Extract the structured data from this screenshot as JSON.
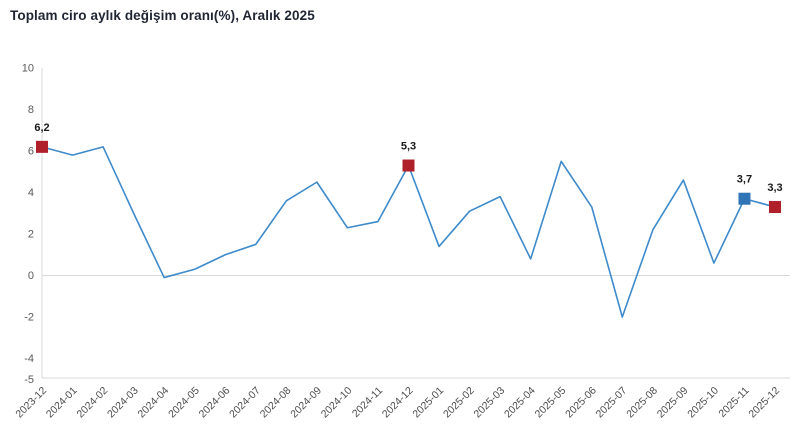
{
  "title": "Toplam ciro aylık değişim oranı(%), Aralık 2025",
  "chart_data": {
    "type": "line",
    "title": "Toplam ciro aylık değişim oranı(%), Aralık 2025",
    "xlabel": "",
    "ylabel": "",
    "categories": [
      "2023-12",
      "2024-01",
      "2024-02",
      "2024-03",
      "2024-04",
      "2024-05",
      "2024-06",
      "2024-07",
      "2024-08",
      "2024-09",
      "2024-10",
      "2024-11",
      "2024-12",
      "2025-01",
      "2025-02",
      "2025-03",
      "2025-04",
      "2025-05",
      "2025-06",
      "2025-07",
      "2025-08",
      "2025-09",
      "2025-10",
      "2025-11",
      "2025-12"
    ],
    "values": [
      6.2,
      5.8,
      6.2,
      3.0,
      -0.1,
      0.3,
      1.0,
      1.5,
      3.6,
      4.5,
      2.3,
      2.6,
      5.3,
      1.4,
      3.1,
      3.8,
      0.8,
      5.5,
      3.3,
      -2.0,
      2.2,
      4.6,
      0.6,
      3.7,
      3.3
    ],
    "ylim": [
      -5,
      10
    ],
    "yticks": [
      10,
      8,
      6,
      4,
      2,
      0,
      -2,
      -4,
      -5
    ],
    "grid": "zero-line-only",
    "legend": "none",
    "line_color": "#3E8ACB",
    "axis_color": "#D9D9D9",
    "tick_color": "#595959",
    "marked_points": [
      {
        "category": "2023-12",
        "value": 6.2,
        "label": "6,2",
        "color": "#B0202A"
      },
      {
        "category": "2024-12",
        "value": 5.3,
        "label": "5,3",
        "color": "#B0202A"
      },
      {
        "category": "2025-11",
        "value": 3.7,
        "label": "3,7",
        "color": "#2E74B6"
      },
      {
        "category": "2025-12",
        "value": 3.3,
        "label": "3,3",
        "color": "#B0202A"
      }
    ]
  }
}
